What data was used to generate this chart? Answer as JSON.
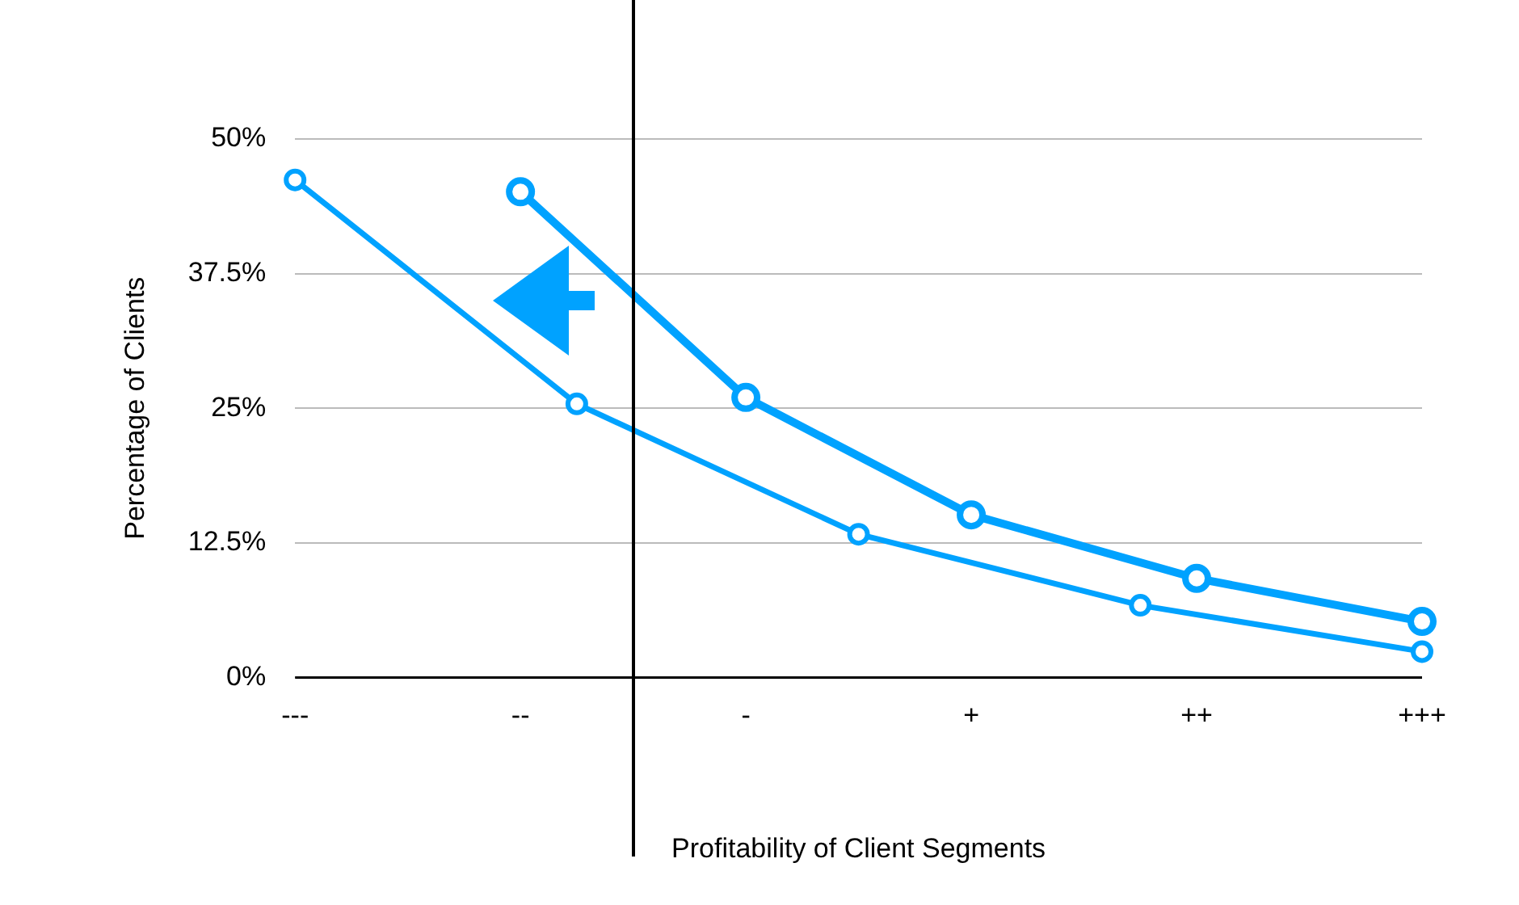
{
  "chart_data": {
    "type": "line",
    "xlabel": "Profitability of Client Segments",
    "ylabel": "Percentage of Clients",
    "categories": [
      "---",
      null,
      null,
      null,
      "--",
      null,
      null,
      null,
      "-",
      null,
      null,
      null,
      "+",
      null,
      null,
      null,
      "++",
      null,
      null,
      null,
      "+++"
    ],
    "ylim": [
      0,
      50
    ],
    "yticks": [
      {
        "value": 0,
        "label": "0%"
      },
      {
        "value": 12.5,
        "label": "12.5%"
      },
      {
        "value": 25,
        "label": "25%"
      },
      {
        "value": 37.5,
        "label": "37.5%"
      },
      {
        "value": 50,
        "label": "50%"
      }
    ],
    "series": [
      {
        "color": "#00a2ff",
        "values": [
          null,
          null,
          null,
          null,
          45.1,
          null,
          null,
          null,
          26,
          null,
          null,
          null,
          15.1,
          null,
          null,
          null,
          9.2,
          null,
          null,
          null,
          5.2
        ]
      },
      {
        "color": "#00a2ff",
        "values": [
          46.2,
          null,
          null,
          null,
          null,
          25.4,
          null,
          null,
          null,
          null,
          13.3,
          null,
          null,
          null,
          null,
          6.7,
          null,
          null,
          null,
          null,
          2.4
        ]
      }
    ],
    "grid": "y",
    "legend": false,
    "marker": "circle",
    "line_style": "solid"
  }
}
